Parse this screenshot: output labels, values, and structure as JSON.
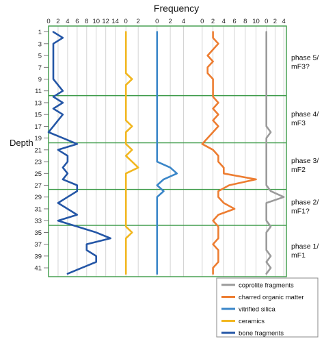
{
  "chart_data": {
    "type": "line",
    "title": "Frequency",
    "ylabel": "Depth",
    "y_ticks": [
      1,
      3,
      5,
      7,
      9,
      11,
      13,
      15,
      17,
      19,
      21,
      23,
      25,
      27,
      29,
      31,
      33,
      35,
      37,
      39,
      41
    ],
    "ylim": [
      0,
      42.5
    ],
    "depths": [
      1,
      2,
      3,
      4,
      5,
      6,
      7,
      8,
      9,
      10,
      11,
      12,
      13,
      14,
      15,
      16,
      17,
      18,
      19,
      20,
      21,
      22,
      23,
      24,
      25,
      26,
      27,
      28,
      29,
      30,
      31,
      32,
      33,
      34,
      35,
      36,
      37,
      38,
      39,
      40,
      41,
      42
    ],
    "grid": true,
    "legend_position": "bottom-right",
    "panels": [
      {
        "name": "bone fragments",
        "color": "#2456a6",
        "ticks": [
          0,
          2,
          4,
          6,
          8,
          10,
          12,
          14
        ],
        "xlim": [
          0,
          15.2
        ],
        "values": [
          1,
          3,
          1,
          1,
          1,
          1,
          1,
          1,
          1,
          2,
          3,
          1,
          3,
          1,
          3,
          2,
          1,
          0,
          3,
          6,
          2,
          4,
          4,
          3,
          4,
          3,
          6,
          6,
          4,
          2,
          4,
          6,
          2,
          6,
          10,
          13,
          8,
          8,
          10,
          10,
          7,
          4
        ]
      },
      {
        "name": "ceramics",
        "color": "#f2b71f",
        "ticks": [
          0,
          2
        ],
        "xlim": [
          -0.8,
          4.2
        ],
        "values": [
          0,
          0,
          0,
          0,
          0,
          0,
          0,
          0,
          1,
          0,
          0,
          0,
          0,
          0,
          0,
          0,
          1,
          0,
          0,
          0,
          1,
          0,
          1,
          2,
          0,
          0,
          0,
          0,
          0,
          0,
          0,
          0,
          0,
          0,
          1,
          0,
          0,
          0,
          0,
          0,
          0,
          0
        ]
      },
      {
        "name": "vitrified silica",
        "color": "#3a86c8",
        "ticks": [
          0,
          2,
          4
        ],
        "xlim": [
          -0.8,
          5.6
        ],
        "values": [
          0,
          0,
          0,
          0,
          0,
          0,
          0,
          0,
          0,
          0,
          0,
          0,
          0,
          0,
          0,
          0,
          0,
          0,
          0,
          0,
          0,
          0,
          0,
          2,
          3,
          1,
          0,
          1,
          0,
          0,
          0,
          0,
          0,
          0,
          0,
          0,
          0,
          0,
          0,
          0,
          0,
          0
        ]
      },
      {
        "name": "charred organic matter",
        "color": "#ed7d31",
        "ticks": [
          0,
          2,
          4,
          6,
          8,
          10
        ],
        "xlim": [
          -1.5,
          11.2
        ],
        "values": [
          2,
          2,
          3,
          2,
          1,
          2,
          1,
          1,
          2,
          2,
          2,
          2,
          3,
          2,
          3,
          2,
          3,
          2,
          1,
          0,
          2,
          3,
          3,
          4,
          4,
          10,
          5,
          3,
          3,
          4,
          6,
          3,
          2,
          3,
          3,
          3,
          2,
          3,
          3,
          3,
          2,
          2
        ]
      },
      {
        "name": "coprolite fragments",
        "color": "#9b9b9b",
        "ticks": [
          0,
          2,
          4
        ],
        "xlim": [
          -0.9,
          4.6
        ],
        "values": [
          0,
          0,
          0,
          0,
          0,
          0,
          0,
          0,
          0,
          0,
          0,
          0,
          0,
          0,
          0,
          0,
          0,
          1,
          0,
          0,
          0,
          0,
          0,
          0,
          0,
          0,
          0,
          1,
          4,
          0,
          0,
          0,
          0,
          1,
          0,
          0,
          0,
          0,
          1,
          0,
          1,
          0
        ]
      }
    ],
    "phase_boundaries": [
      11.8,
      19.8,
      27.7,
      33.8
    ],
    "phases": [
      {
        "label_lines": [
          "phase 5/",
          "mF3?"
        ],
        "center": 6.2
      },
      {
        "label_lines": [
          "phase 4/",
          "mF3"
        ],
        "center": 15.8
      },
      {
        "label_lines": [
          "phase 3/",
          "mF2"
        ],
        "center": 23.7
      },
      {
        "label_lines": [
          "phase 2/",
          "mF1?"
        ],
        "center": 30.7
      },
      {
        "label_lines": [
          "phase 1/",
          "mF1"
        ],
        "center": 38.2
      }
    ],
    "legend": [
      "coprolite fragments",
      "charred organic matter",
      "vitrified silica",
      "ceramics",
      "bone fragments"
    ],
    "legend_colors": [
      "#9b9b9b",
      "#ed7d31",
      "#3a86c8",
      "#f2b71f",
      "#2456a6"
    ]
  }
}
